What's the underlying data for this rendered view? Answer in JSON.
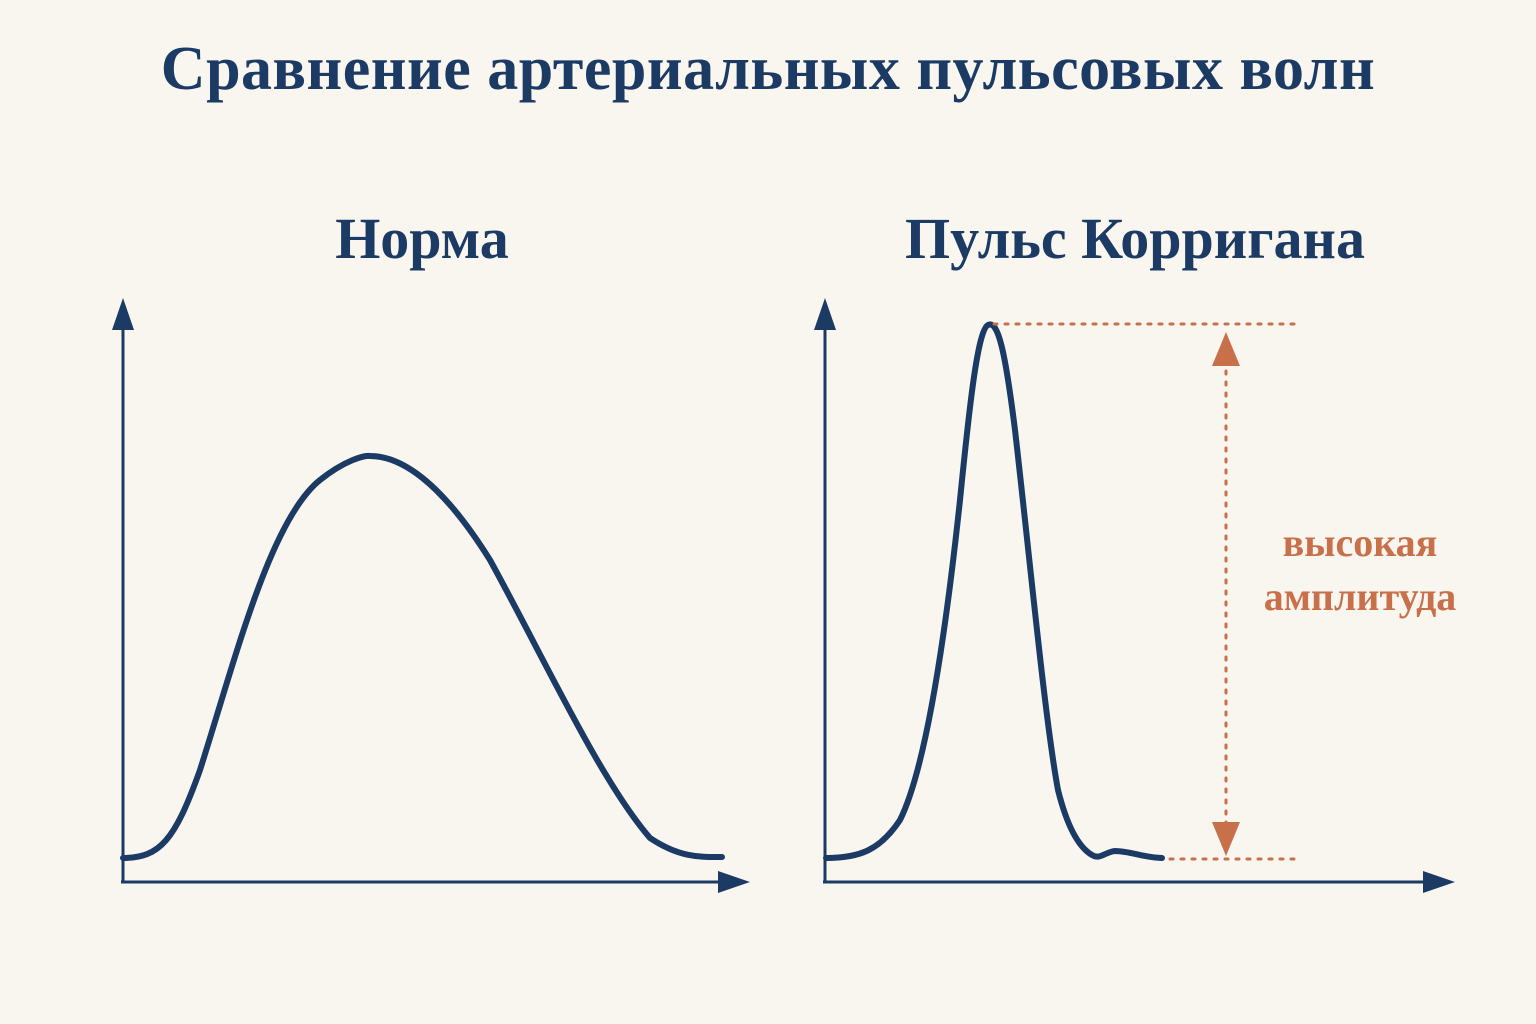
{
  "title": "Сравнение артериальных пульсовых волн",
  "panels": {
    "normal": {
      "title": "Норма"
    },
    "corrigan": {
      "title": "Пульс Корригана",
      "annotation_line1": "высокая",
      "annotation_line2": "амплитуда"
    }
  },
  "colors": {
    "background": "#f9f5ef",
    "curve": "#1b3a64",
    "annotation": "#c8704a"
  }
}
